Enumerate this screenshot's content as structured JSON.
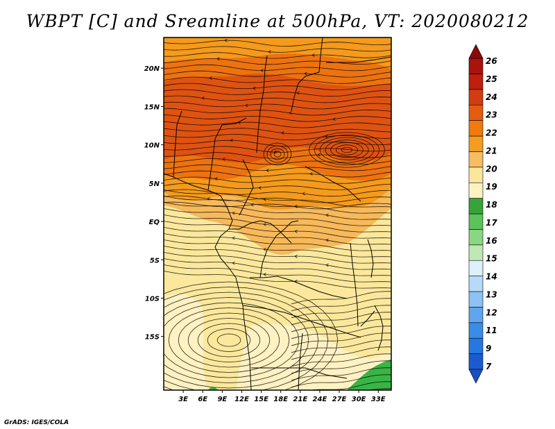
{
  "title": "WBPT [C] and Sreamline at 500hPa, VT: 2020080212",
  "credit": "GrADS: IGES/COLA",
  "map": {
    "lat_range": [
      -22,
      24
    ],
    "lon_range": [
      0,
      35
    ],
    "lat_ticks": [
      {
        "value": 20,
        "label": "20N"
      },
      {
        "value": 15,
        "label": "15N"
      },
      {
        "value": 10,
        "label": "10N"
      },
      {
        "value": 5,
        "label": "5N"
      },
      {
        "value": 0,
        "label": "EQ"
      },
      {
        "value": -5,
        "label": "5S"
      },
      {
        "value": -10,
        "label": "10S"
      },
      {
        "value": -15,
        "label": "15S"
      }
    ],
    "lon_ticks": [
      {
        "value": 3,
        "label": "3E"
      },
      {
        "value": 6,
        "label": "6E"
      },
      {
        "value": 9,
        "label": "9E"
      },
      {
        "value": 12,
        "label": "12E"
      },
      {
        "value": 15,
        "label": "15E"
      },
      {
        "value": 18,
        "label": "18E"
      },
      {
        "value": 21,
        "label": "21E"
      },
      {
        "value": 24,
        "label": "24E"
      },
      {
        "value": 27,
        "label": "27E"
      },
      {
        "value": 30,
        "label": "30E"
      },
      {
        "value": 33,
        "label": "33E"
      }
    ],
    "fill_colors": {
      "c19_20": "#fbe89c",
      "c20_21": "#f7b95a",
      "c21_22": "#f49a1c",
      "c22_23": "#ec7310",
      "c23_24": "#de5311",
      "c17_18": "#37b545",
      "c18_19": "#fef1c2"
    },
    "colorbar": {
      "colors": [
        "#1a5cd0",
        "#2478e0",
        "#3a8ce8",
        "#60a6ee",
        "#8cc2f4",
        "#b6dbf8",
        "#dcf1fb",
        "#bfe8b4",
        "#8ad682",
        "#5cc25c",
        "#37a43a",
        "#fdf2c2",
        "#fbe79b",
        "#f7bd62",
        "#f49c22",
        "#f07a0e",
        "#e45c10",
        "#d23c10",
        "#c01e0e",
        "#a8140c"
      ],
      "labels": [
        "7",
        "9",
        "11",
        "12",
        "13",
        "14",
        "15",
        "16",
        "17",
        "18",
        "19",
        "20",
        "21",
        "22",
        "23",
        "24",
        "25",
        "26"
      ]
    }
  }
}
